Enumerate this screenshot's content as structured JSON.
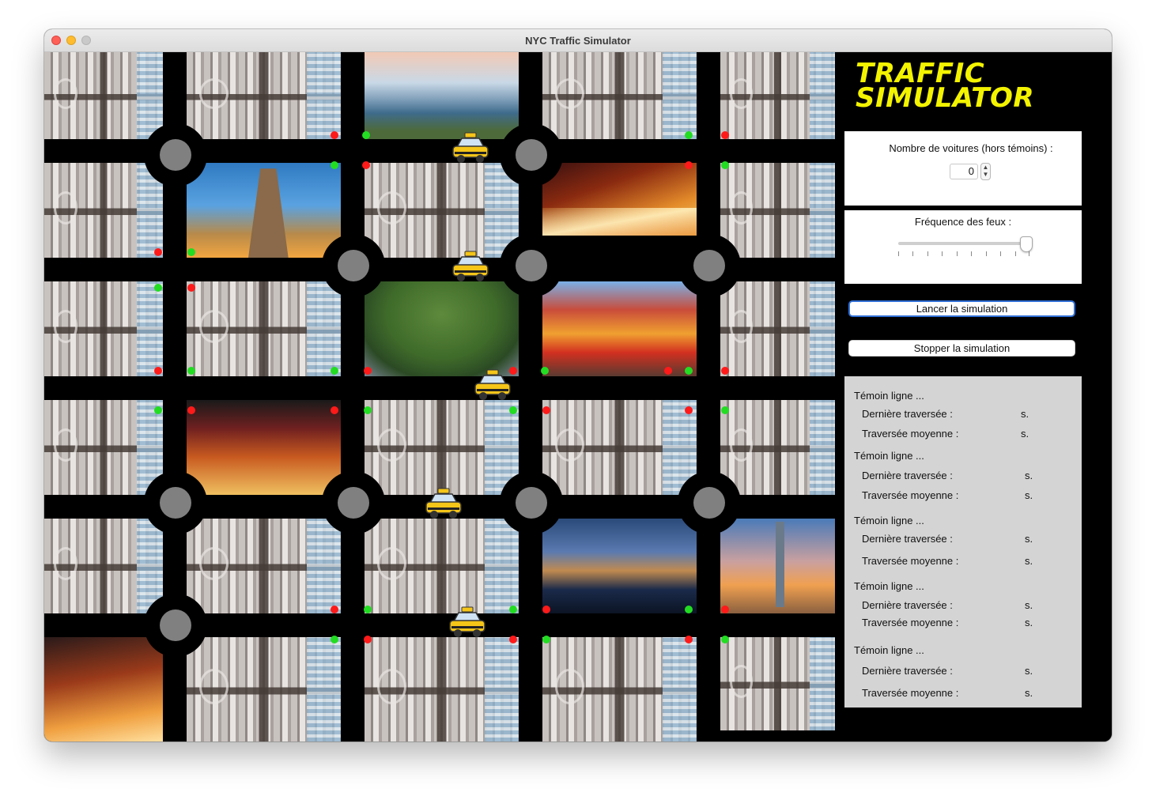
{
  "window": {
    "title": "NYC Traffic Simulator"
  },
  "panel": {
    "logo_line1": "TRAFFIC",
    "logo_line2": "SIMULATOR",
    "cars_label": "Nombre de voitures (hors témoins) :",
    "cars_value": "0",
    "frequency_label": "Fréquence des feux :",
    "frequency_level": 1.0,
    "start_button": "Lancer la simulation",
    "stop_button": "Stopper la simulation"
  },
  "witnesses": [
    {
      "title": "Témoin ligne ...",
      "last_label": "Dernière traversée :",
      "last_unit": "s.",
      "avg_label": "Traversée moyenne :",
      "avg_unit": "s."
    },
    {
      "title": "Témoin ligne ...",
      "last_label": "Dernière traversée :",
      "last_unit": "s.",
      "avg_label": "Traversée moyenne :",
      "avg_unit": "s."
    },
    {
      "title": "Témoin ligne ...",
      "last_label": "Dernière traversée :",
      "last_unit": "s.",
      "avg_label": "Traversée moyenne :",
      "avg_unit": "s."
    },
    {
      "title": "Témoin ligne ...",
      "last_label": "Dernière traversée :",
      "last_unit": "s.",
      "avg_label": "Traversée moyenne :",
      "avg_unit": "s."
    },
    {
      "title": "Témoin ligne ...",
      "last_label": "Dernière traversée :",
      "last_unit": "s.",
      "avg_label": "Traversée moyenne :",
      "avg_unit": "s."
    }
  ],
  "icons": {
    "taxi": "taxi-icon",
    "roundabout": "roundabout-icon"
  },
  "colors": {
    "logo": "#f3f300",
    "light_red": "#ff1a1a",
    "light_green": "#22dd22",
    "stats_bg": "#d4d4d4",
    "road": "#000000"
  }
}
